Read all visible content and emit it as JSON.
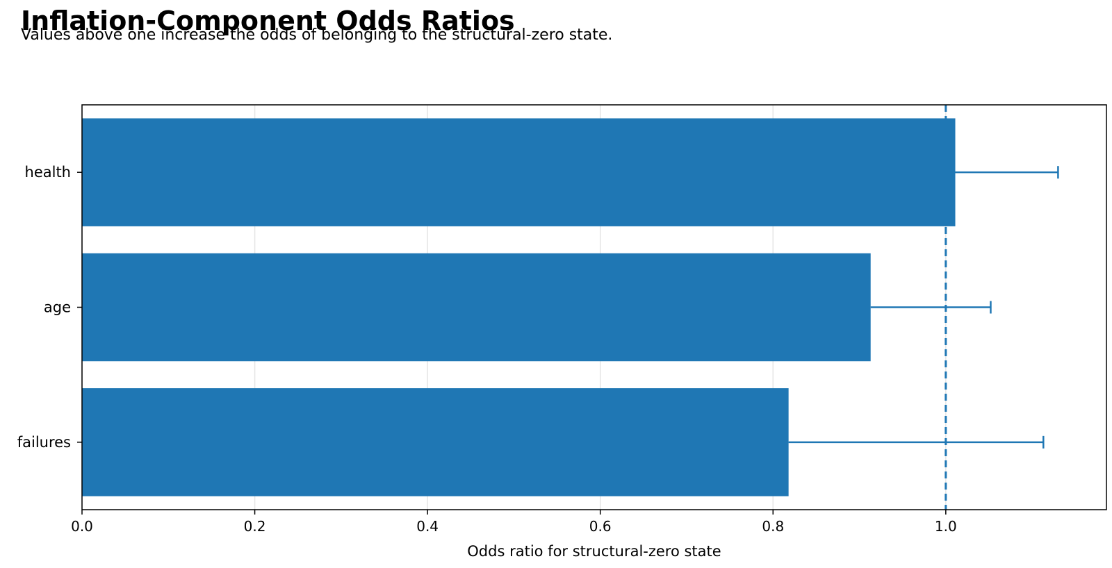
{
  "chart_data": {
    "type": "bar",
    "orientation": "horizontal",
    "title": "Inflation-Component Odds Ratios",
    "subtitle": "Values above one increase the odds of belonging to the structural-zero state.",
    "xlabel": "Odds ratio for structural-zero state",
    "ylabel": "",
    "xlim": [
      0,
      1.186
    ],
    "xticks": [
      0.0,
      0.2,
      0.4,
      0.6,
      0.8,
      1.0
    ],
    "xtick_labels": [
      "0.0",
      "0.2",
      "0.4",
      "0.6",
      "0.8",
      "1.0"
    ],
    "categories": [
      "health",
      "age",
      "failures"
    ],
    "values": [
      1.011,
      0.913,
      0.818
    ],
    "error_upper": [
      1.13,
      1.052,
      1.113
    ],
    "reference_line": 1.0,
    "grid": "vertical",
    "bar_color": "#1f77b4",
    "reference_line_color": "#1f77b4"
  }
}
